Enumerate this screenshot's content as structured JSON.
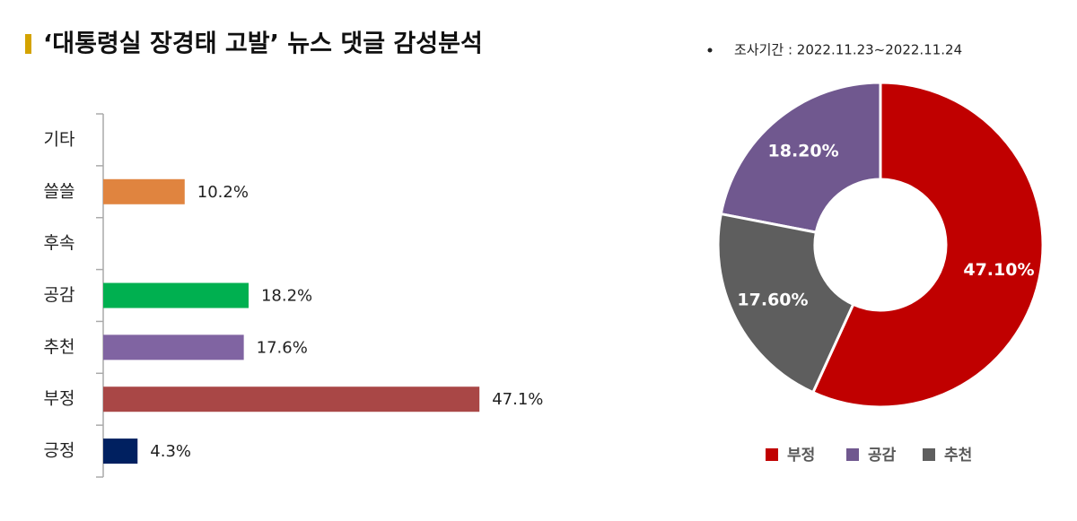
{
  "header": {
    "title": "‘대통령실 장경태 고발’ 뉴스 댓글 감성분석",
    "note": "조사기간 : 2022.11.23~2022.11.24"
  },
  "chart_data": [
    {
      "type": "bar",
      "orientation": "horizontal",
      "categories": [
        "기타",
        "쓸쓸",
        "후속",
        "공감",
        "추천",
        "부정",
        "긍정"
      ],
      "values": [
        null,
        10.2,
        null,
        18.2,
        17.6,
        47.1,
        4.3
      ],
      "value_labels": [
        null,
        "10.2%",
        null,
        "18.2%",
        "17.6%",
        "47.1%",
        "4.3%"
      ],
      "colors": [
        null,
        "#e0843f",
        null,
        "#00b050",
        "#8064a2",
        "#a94746",
        "#002060"
      ],
      "xlim": [
        0,
        50
      ]
    },
    {
      "type": "pie",
      "donut": true,
      "categories": [
        "부정",
        "공감",
        "추천"
      ],
      "values": [
        47.1,
        18.2,
        17.6
      ],
      "value_labels": [
        "47.10%",
        "18.20%",
        "17.60%"
      ],
      "colors": [
        "#c00000",
        "#70588f",
        "#5e5e5e"
      ],
      "legend": "bottom"
    }
  ]
}
